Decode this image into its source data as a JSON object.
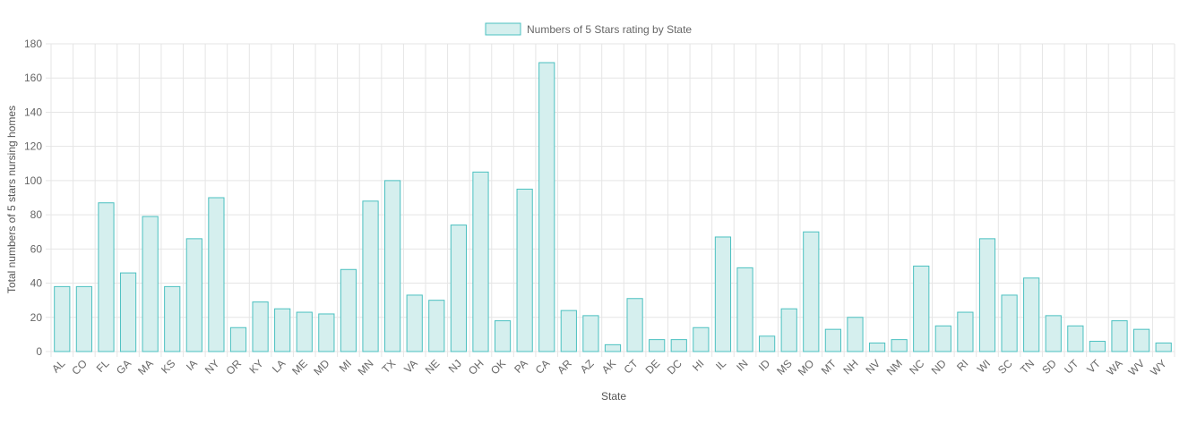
{
  "chart_data": {
    "type": "bar",
    "title": "",
    "xlabel": "State",
    "ylabel": "Total numbers of 5 stars nursing homes",
    "ylim": [
      0,
      180
    ],
    "ytick_step": 20,
    "grid": true,
    "legend_placement": "top-center",
    "colors": {
      "bar_fill": "#d5efee",
      "bar_stroke": "#4bc0c0",
      "grid": "#e5e5e5",
      "text": "#666666",
      "axis_title": "#555555"
    },
    "categories": [
      "AL",
      "CO",
      "FL",
      "GA",
      "MA",
      "KS",
      "IA",
      "NY",
      "OR",
      "KY",
      "LA",
      "ME",
      "MD",
      "MI",
      "MN",
      "TX",
      "VA",
      "NE",
      "NJ",
      "OH",
      "OK",
      "PA",
      "CA",
      "AR",
      "AZ",
      "AK",
      "CT",
      "DE",
      "DC",
      "HI",
      "IL",
      "IN",
      "ID",
      "MS",
      "MO",
      "MT",
      "NH",
      "NV",
      "NM",
      "NC",
      "ND",
      "RI",
      "WI",
      "SC",
      "TN",
      "SD",
      "UT",
      "VT",
      "WA",
      "WV",
      "WY"
    ],
    "series": [
      {
        "name": "Numbers of 5 Stars rating by State",
        "values": [
          38,
          38,
          87,
          46,
          79,
          38,
          66,
          90,
          14,
          29,
          25,
          23,
          22,
          48,
          88,
          100,
          33,
          30,
          74,
          105,
          18,
          95,
          169,
          24,
          21,
          4,
          31,
          7,
          7,
          14,
          67,
          49,
          9,
          25,
          70,
          13,
          20,
          5,
          7,
          50,
          15,
          23,
          66,
          33,
          43,
          21,
          15,
          6,
          18,
          13,
          5
        ]
      }
    ]
  }
}
